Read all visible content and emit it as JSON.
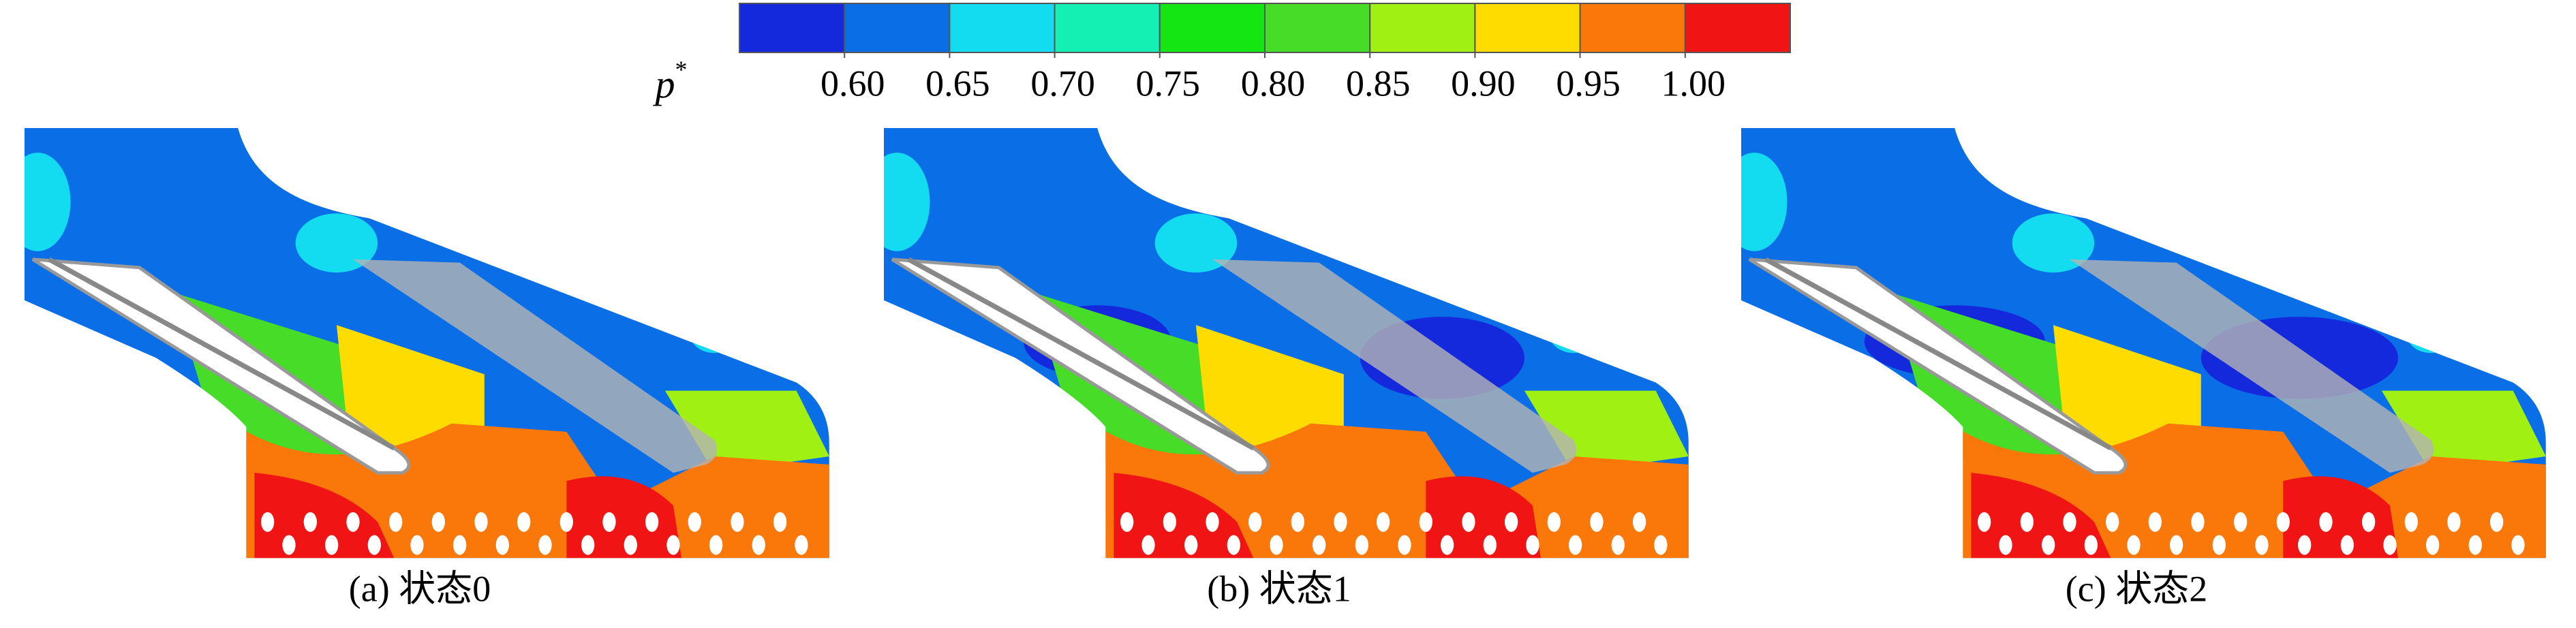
{
  "colorbar": {
    "symbol": "p",
    "superscript": "*",
    "colors": [
      "#1428dc",
      "#0a6ee6",
      "#14dcf0",
      "#14f0b4",
      "#14e614",
      "#46dc28",
      "#a0f014",
      "#ffdc00",
      "#fa780a",
      "#f01414"
    ],
    "ticks": [
      {
        "value": 0.6,
        "label": "0.60"
      },
      {
        "value": 0.65,
        "label": "0.65"
      },
      {
        "value": 0.7,
        "label": "0.70"
      },
      {
        "value": 0.75,
        "label": "0.75"
      },
      {
        "value": 0.8,
        "label": "0.80"
      },
      {
        "value": 0.85,
        "label": "0.85"
      },
      {
        "value": 0.9,
        "label": "0.90"
      },
      {
        "value": 0.95,
        "label": "0.95"
      },
      {
        "value": 1.0,
        "label": "1.00"
      }
    ]
  },
  "panels": [
    {
      "caption": "(a) 状态0"
    },
    {
      "caption": "(b) 状态1"
    },
    {
      "caption": "(c) 状态2"
    }
  ]
}
